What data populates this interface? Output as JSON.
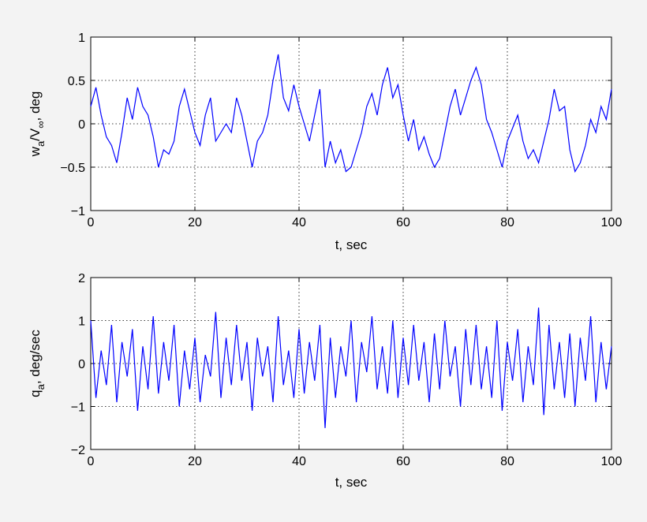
{
  "chart_data": [
    {
      "type": "line",
      "xlabel": "t, sec",
      "ylabel": "w",
      "ylabel_sub1": "a",
      "ylabel_mid": "/V",
      "ylabel_sub2": "∞",
      "ylabel_end": ", deg",
      "xlim": [
        0,
        100
      ],
      "ylim": [
        -1,
        1
      ],
      "xticks": [
        0,
        20,
        40,
        60,
        80,
        100
      ],
      "yticks": [
        -1,
        -0.5,
        0,
        0.5,
        1
      ],
      "xtick_labels": [
        "0",
        "20",
        "40",
        "60",
        "80",
        "100"
      ],
      "ytick_labels": [
        "−1",
        "−0.5",
        "0",
        "0.5",
        "1"
      ],
      "grid": true,
      "line_color": "#0000ff",
      "x": [
        0,
        1,
        2,
        3,
        4,
        5,
        6,
        7,
        8,
        9,
        10,
        11,
        12,
        13,
        14,
        15,
        16,
        17,
        18,
        19,
        20,
        21,
        22,
        23,
        24,
        25,
        26,
        27,
        28,
        29,
        30,
        31,
        32,
        33,
        34,
        35,
        36,
        37,
        38,
        39,
        40,
        41,
        42,
        43,
        44,
        45,
        46,
        47,
        48,
        49,
        50,
        51,
        52,
        53,
        54,
        55,
        56,
        57,
        58,
        59,
        60,
        61,
        62,
        63,
        64,
        65,
        66,
        67,
        68,
        69,
        70,
        71,
        72,
        73,
        74,
        75,
        76,
        77,
        78,
        79,
        80,
        81,
        82,
        83,
        84,
        85,
        86,
        87,
        88,
        89,
        90,
        91,
        92,
        93,
        94,
        95,
        96,
        97,
        98,
        99,
        100
      ],
      "y": [
        0.2,
        0.42,
        0.1,
        -0.15,
        -0.25,
        -0.45,
        -0.1,
        0.3,
        0.05,
        0.42,
        0.2,
        0.1,
        -0.15,
        -0.5,
        -0.3,
        -0.35,
        -0.2,
        0.2,
        0.4,
        0.15,
        -0.1,
        -0.25,
        0.1,
        0.3,
        -0.2,
        -0.1,
        0,
        -0.1,
        0.3,
        0.1,
        -0.2,
        -0.5,
        -0.2,
        -0.1,
        0.1,
        0.5,
        0.8,
        0.3,
        0.15,
        0.45,
        0.2,
        0,
        -0.2,
        0.1,
        0.4,
        -0.5,
        -0.2,
        -0.45,
        -0.3,
        -0.55,
        -0.5,
        -0.3,
        -0.1,
        0.2,
        0.35,
        0.1,
        0.45,
        0.65,
        0.3,
        0.45,
        0.1,
        -0.2,
        0.05,
        -0.3,
        -0.15,
        -0.35,
        -0.5,
        -0.4,
        -0.1,
        0.2,
        0.4,
        0.1,
        0.3,
        0.5,
        0.65,
        0.45,
        0.05,
        -0.1,
        -0.3,
        -0.5,
        -0.2,
        -0.05,
        0.1,
        -0.2,
        -0.4,
        -0.3,
        -0.45,
        -0.2,
        0.05,
        0.4,
        0.15,
        0.2,
        -0.3,
        -0.55,
        -0.45,
        -0.25,
        0.05,
        -0.1,
        0.2,
        0.05,
        0.4
      ]
    },
    {
      "type": "line",
      "xlabel": "t, sec",
      "ylabel": "q",
      "ylabel_sub1": "a",
      "ylabel_end": ", deg/sec",
      "xlim": [
        0,
        100
      ],
      "ylim": [
        -2,
        2
      ],
      "xticks": [
        0,
        20,
        40,
        60,
        80,
        100
      ],
      "yticks": [
        -2,
        -1,
        0,
        1,
        2
      ],
      "xtick_labels": [
        "0",
        "20",
        "40",
        "60",
        "80",
        "100"
      ],
      "ytick_labels": [
        "−2",
        "−1",
        "0",
        "1",
        "2"
      ],
      "grid": true,
      "line_color": "#0000ff",
      "x": [
        0,
        1,
        2,
        3,
        4,
        5,
        6,
        7,
        8,
        9,
        10,
        11,
        12,
        13,
        14,
        15,
        16,
        17,
        18,
        19,
        20,
        21,
        22,
        23,
        24,
        25,
        26,
        27,
        28,
        29,
        30,
        31,
        32,
        33,
        34,
        35,
        36,
        37,
        38,
        39,
        40,
        41,
        42,
        43,
        44,
        45,
        46,
        47,
        48,
        49,
        50,
        51,
        52,
        53,
        54,
        55,
        56,
        57,
        58,
        59,
        60,
        61,
        62,
        63,
        64,
        65,
        66,
        67,
        68,
        69,
        70,
        71,
        72,
        73,
        74,
        75,
        76,
        77,
        78,
        79,
        80,
        81,
        82,
        83,
        84,
        85,
        86,
        87,
        88,
        89,
        90,
        91,
        92,
        93,
        94,
        95,
        96,
        97,
        98,
        99,
        100
      ],
      "y": [
        1,
        -0.8,
        0.3,
        -0.5,
        0.9,
        -0.9,
        0.5,
        -0.3,
        0.8,
        -1.1,
        0.4,
        -0.6,
        1.1,
        -0.7,
        0.5,
        -0.4,
        0.9,
        -1,
        0.3,
        -0.6,
        0.6,
        -0.9,
        0.2,
        -0.3,
        1.2,
        -0.8,
        0.6,
        -0.5,
        0.9,
        -0.4,
        0.5,
        -1.1,
        0.6,
        -0.3,
        0.4,
        -0.9,
        1.1,
        -0.5,
        0.3,
        -0.8,
        0.8,
        -0.7,
        0.5,
        -0.4,
        0.9,
        -1.5,
        0.6,
        -0.8,
        0.4,
        -0.3,
        1,
        -0.9,
        0.5,
        -0.2,
        1.1,
        -0.6,
        0.4,
        -0.7,
        1,
        -0.8,
        0.6,
        -0.5,
        0.9,
        -0.4,
        0.5,
        -0.9,
        0.7,
        -0.6,
        1,
        -0.3,
        0.4,
        -1,
        0.8,
        -0.5,
        0.9,
        -0.6,
        0.4,
        -0.8,
        1,
        -1.1,
        0.5,
        -0.4,
        0.8,
        -0.9,
        0.4,
        -0.5,
        1.3,
        -1.2,
        0.9,
        -0.6,
        0.5,
        -0.8,
        0.7,
        -1,
        0.6,
        -0.4,
        1.1,
        -0.9,
        0.5,
        -0.6,
        0.4
      ]
    }
  ]
}
